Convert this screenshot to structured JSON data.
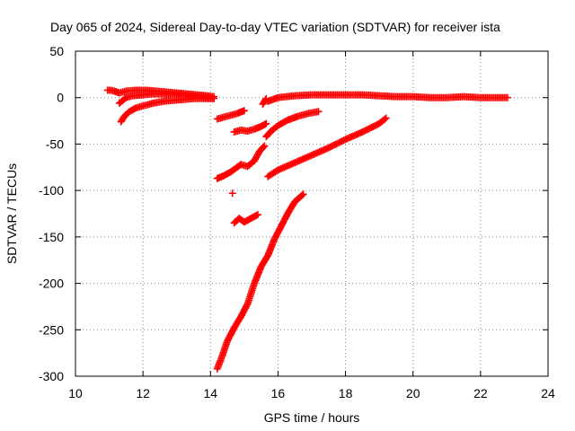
{
  "chart_data": {
    "type": "scatter",
    "title": "Day 065 of 2024, Sidereal Day-to-day VTEC variation (SDTVAR) for receiver ista",
    "xlabel": "GPS time / hours",
    "ylabel": "SDTVAR / TECUs",
    "xlim": [
      10,
      24
    ],
    "ylim": [
      -300,
      50
    ],
    "xticks": [
      10,
      12,
      14,
      16,
      18,
      20,
      22,
      24
    ],
    "yticks": [
      -300,
      -250,
      -200,
      -150,
      -100,
      -50,
      0,
      50
    ],
    "grid": true,
    "marker": "plus",
    "color": "#ff0000",
    "series": [
      {
        "x": [
          10.95,
          11.05,
          11.15,
          11.3,
          11.5,
          11.8,
          12.1,
          12.4,
          12.7,
          13.0,
          13.3,
          13.6,
          13.9,
          14.1
        ],
        "y": [
          8,
          8,
          7,
          5,
          7,
          8,
          8,
          7,
          6,
          5,
          4,
          3,
          2,
          1
        ]
      },
      {
        "x": [
          11.3,
          11.5,
          11.7,
          12.0,
          12.3,
          12.6,
          12.9,
          13.2,
          13.5,
          13.8,
          14.1
        ],
        "y": [
          -6,
          0,
          2,
          3,
          4,
          4,
          4,
          3,
          2,
          1,
          -1
        ]
      },
      {
        "x": [
          11.35,
          11.45,
          11.6,
          11.8,
          12.0,
          12.3,
          12.6,
          12.9,
          13.2,
          13.5,
          13.8,
          14.1
        ],
        "y": [
          -26,
          -20,
          -15,
          -11,
          -9,
          -6,
          -4,
          -3,
          -2,
          -1,
          -1,
          -1
        ]
      },
      {
        "x": [
          14.2,
          14.5,
          14.8,
          15.0
        ],
        "y": [
          -23,
          -20,
          -17,
          -14
        ]
      },
      {
        "x": [
          14.7,
          14.9,
          15.1,
          15.3,
          15.5,
          15.65
        ],
        "y": [
          -37,
          -35,
          -36,
          -34,
          -31,
          -28
        ]
      },
      {
        "x": [
          15.55,
          15.6,
          15.65
        ],
        "y": [
          -7,
          -4,
          -1
        ]
      },
      {
        "x": [
          15.7,
          16.0,
          16.5,
          17.0,
          17.5,
          18.0,
          18.5,
          19.0,
          19.5,
          20.0,
          20.5,
          21.0,
          21.5,
          22.0,
          22.5,
          22.8
        ],
        "y": [
          -4,
          0,
          2,
          3,
          3,
          3,
          3,
          2,
          1,
          1,
          0,
          0,
          1,
          0,
          0,
          0
        ]
      },
      {
        "x": [
          15.65,
          15.8,
          16.0,
          16.3,
          16.6,
          16.9,
          17.2
        ],
        "y": [
          -42,
          -36,
          -30,
          -24,
          -20,
          -17,
          -15
        ]
      },
      {
        "x": [
          14.2,
          14.4,
          14.6,
          14.75,
          14.9,
          15.1,
          15.3,
          15.45,
          15.6
        ],
        "y": [
          -87,
          -84,
          -80,
          -76,
          -72,
          -74,
          -68,
          -58,
          -52
        ]
      },
      {
        "x": [
          14.65
        ],
        "y": [
          -103
        ]
      },
      {
        "x": [
          15.7,
          16.0,
          16.5,
          17.0,
          17.5,
          18.0,
          18.5,
          19.0,
          19.2
        ],
        "y": [
          -85,
          -78,
          -70,
          -62,
          -54,
          -45,
          -37,
          -28,
          -22
        ]
      },
      {
        "x": [
          14.7,
          14.85,
          15.0,
          15.2,
          15.4
        ],
        "y": [
          -135,
          -130,
          -134,
          -130,
          -126
        ]
      },
      {
        "x": [
          14.2,
          14.35,
          14.5,
          14.7,
          14.9,
          15.1,
          15.3,
          15.5,
          15.7,
          15.9,
          16.1,
          16.3,
          16.5,
          16.75
        ],
        "y": [
          -292,
          -278,
          -262,
          -248,
          -236,
          -222,
          -200,
          -182,
          -170,
          -152,
          -138,
          -124,
          -112,
          -104
        ]
      }
    ]
  }
}
